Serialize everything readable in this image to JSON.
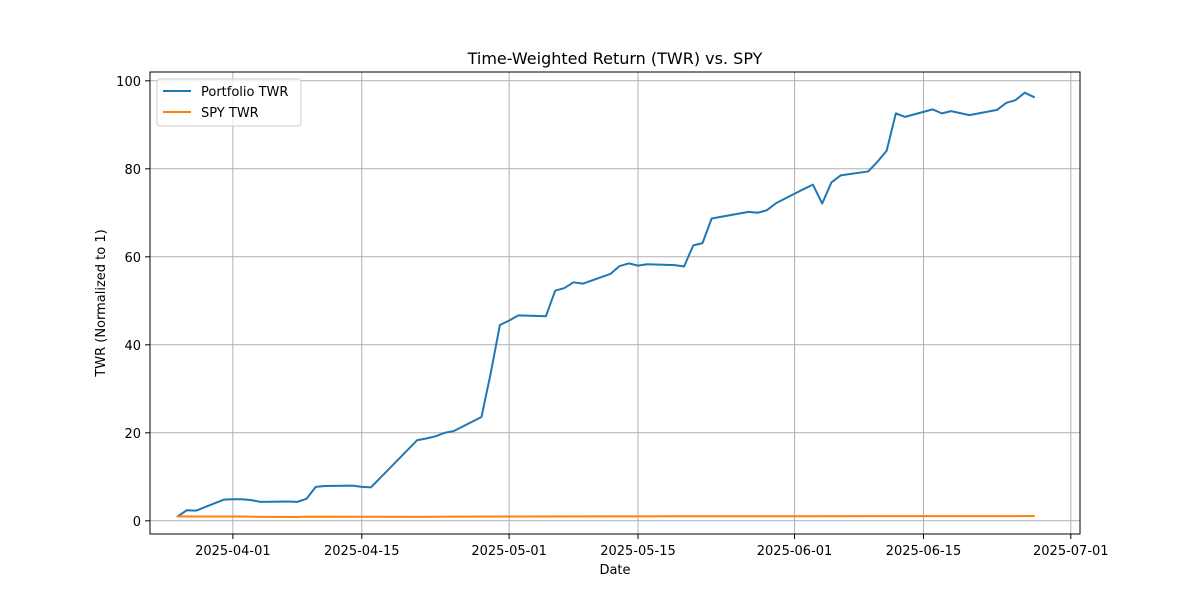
{
  "chart_data": {
    "type": "line",
    "title": "Time-Weighted Return (TWR) vs. SPY",
    "xlabel": "Date",
    "ylabel": "TWR (Normalized to 1)",
    "x_type": "date",
    "xlim": [
      "2025-03-23",
      "2025-07-02"
    ],
    "ylim": [
      -3,
      102
    ],
    "x_ticks": [
      "2025-04-01",
      "2025-04-15",
      "2025-05-01",
      "2025-05-15",
      "2025-06-01",
      "2025-06-15",
      "2025-07-01"
    ],
    "y_ticks": [
      0,
      20,
      40,
      60,
      80,
      100
    ],
    "grid": true,
    "legend_position": "upper-left",
    "series": [
      {
        "name": "Portfolio TWR",
        "color": "#1f77b4",
        "points": [
          [
            "2025-03-26",
            1.0
          ],
          [
            "2025-03-27",
            2.4
          ],
          [
            "2025-03-28",
            2.3
          ],
          [
            "2025-03-31",
            4.8
          ],
          [
            "2025-04-01",
            4.9
          ],
          [
            "2025-04-02",
            4.9
          ],
          [
            "2025-04-03",
            4.7
          ],
          [
            "2025-04-04",
            4.3
          ],
          [
            "2025-04-07",
            4.4
          ],
          [
            "2025-04-08",
            4.3
          ],
          [
            "2025-04-09",
            5.0
          ],
          [
            "2025-04-10",
            7.7
          ],
          [
            "2025-04-11",
            7.9
          ],
          [
            "2025-04-14",
            8.0
          ],
          [
            "2025-04-15",
            7.7
          ],
          [
            "2025-04-16",
            7.6
          ],
          [
            "2025-04-21",
            18.3
          ],
          [
            "2025-04-22",
            18.7
          ],
          [
            "2025-04-23",
            19.2
          ],
          [
            "2025-04-24",
            20.0
          ],
          [
            "2025-04-25",
            20.4
          ],
          [
            "2025-04-28",
            23.6
          ],
          [
            "2025-04-29",
            33.5
          ],
          [
            "2025-04-30",
            44.5
          ],
          [
            "2025-05-01",
            45.5
          ],
          [
            "2025-05-02",
            46.7
          ],
          [
            "2025-05-05",
            46.5
          ],
          [
            "2025-05-06",
            52.3
          ],
          [
            "2025-05-07",
            52.9
          ],
          [
            "2025-05-08",
            54.2
          ],
          [
            "2025-05-09",
            53.9
          ],
          [
            "2025-05-12",
            56.1
          ],
          [
            "2025-05-13",
            57.9
          ],
          [
            "2025-05-14",
            58.5
          ],
          [
            "2025-05-15",
            58.0
          ],
          [
            "2025-05-16",
            58.3
          ],
          [
            "2025-05-19",
            58.1
          ],
          [
            "2025-05-20",
            57.8
          ],
          [
            "2025-05-21",
            62.6
          ],
          [
            "2025-05-22",
            63.1
          ],
          [
            "2025-05-23",
            68.7
          ],
          [
            "2025-05-27",
            70.2
          ],
          [
            "2025-05-28",
            70.0
          ],
          [
            "2025-05-29",
            70.6
          ],
          [
            "2025-05-30",
            72.2
          ],
          [
            "2025-06-02",
            75.4
          ],
          [
            "2025-06-03",
            76.4
          ],
          [
            "2025-06-04",
            72.1
          ],
          [
            "2025-06-05",
            76.9
          ],
          [
            "2025-06-06",
            78.5
          ],
          [
            "2025-06-09",
            79.4
          ],
          [
            "2025-06-10",
            81.6
          ],
          [
            "2025-06-11",
            84.1
          ],
          [
            "2025-06-12",
            92.6
          ],
          [
            "2025-06-13",
            91.8
          ],
          [
            "2025-06-16",
            93.5
          ],
          [
            "2025-06-17",
            92.6
          ],
          [
            "2025-06-18",
            93.1
          ],
          [
            "2025-06-20",
            92.2
          ],
          [
            "2025-06-23",
            93.4
          ],
          [
            "2025-06-24",
            95.0
          ],
          [
            "2025-06-25",
            95.6
          ],
          [
            "2025-06-26",
            97.3
          ],
          [
            "2025-06-27",
            96.3
          ]
        ]
      },
      {
        "name": "SPY TWR",
        "color": "#ff7f0e",
        "points": [
          [
            "2025-03-26",
            1.0
          ],
          [
            "2025-03-28",
            0.97
          ],
          [
            "2025-04-02",
            0.98
          ],
          [
            "2025-04-04",
            0.88
          ],
          [
            "2025-04-08",
            0.86
          ],
          [
            "2025-04-09",
            0.94
          ],
          [
            "2025-04-15",
            0.93
          ],
          [
            "2025-04-21",
            0.89
          ],
          [
            "2025-04-25",
            0.95
          ],
          [
            "2025-05-02",
            0.98
          ],
          [
            "2025-05-12",
            1.01
          ],
          [
            "2025-05-19",
            1.03
          ],
          [
            "2025-06-02",
            1.04
          ],
          [
            "2025-06-13",
            1.05
          ],
          [
            "2025-06-27",
            1.08
          ]
        ]
      }
    ]
  }
}
